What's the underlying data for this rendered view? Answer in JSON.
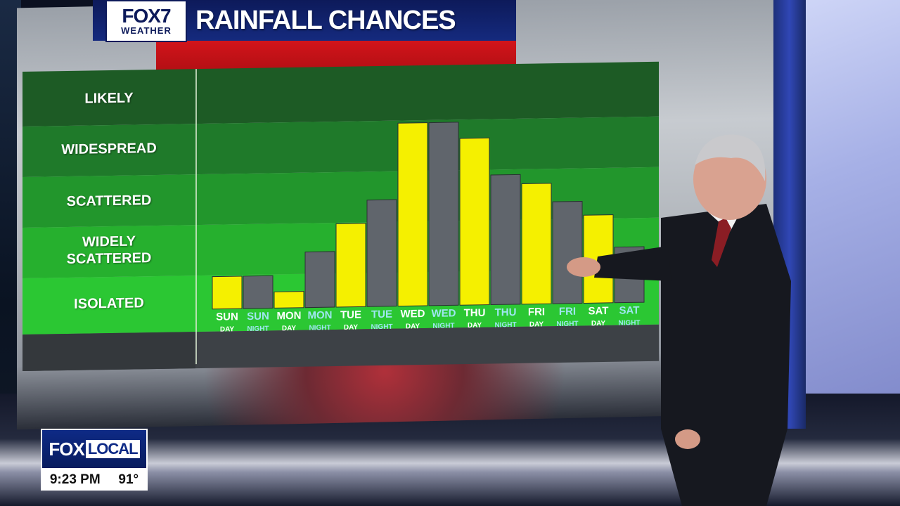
{
  "header": {
    "logo_main": "FOX7",
    "logo_sub": "WEATHER",
    "title": "RAINFALL CHANCES"
  },
  "chart_data": {
    "type": "bar",
    "title": "RAINFALL CHANCES",
    "y_scale": "categorical levels (values as 0-5 level units)",
    "levels": [
      "ISOLATED",
      "WIDELY SCATTERED",
      "SCATTERED",
      "WIDESPREAD",
      "LIKELY"
    ],
    "categories": [
      {
        "day": "SUN",
        "period": "DAY"
      },
      {
        "day": "SUN",
        "period": "NIGHT"
      },
      {
        "day": "MON",
        "period": "DAY"
      },
      {
        "day": "MON",
        "period": "NIGHT"
      },
      {
        "day": "TUE",
        "period": "DAY"
      },
      {
        "day": "TUE",
        "period": "NIGHT"
      },
      {
        "day": "WED",
        "period": "DAY"
      },
      {
        "day": "WED",
        "period": "NIGHT"
      },
      {
        "day": "THU",
        "period": "DAY"
      },
      {
        "day": "THU",
        "period": "NIGHT"
      },
      {
        "day": "FRI",
        "period": "DAY"
      },
      {
        "day": "FRI",
        "period": "NIGHT"
      },
      {
        "day": "SAT",
        "period": "DAY"
      },
      {
        "day": "SAT",
        "period": "NIGHT"
      }
    ],
    "values": [
      0.7,
      0.7,
      0.35,
      1.2,
      1.8,
      2.3,
      3.95,
      3.95,
      3.6,
      2.8,
      2.6,
      2.2,
      1.9,
      1.2
    ],
    "ylim": [
      0,
      4.4
    ],
    "colors": {
      "day": "#f5f000",
      "night": "#60656c"
    }
  },
  "bands": [
    {
      "label": "LIKELY",
      "color": "#1d5b25"
    },
    {
      "label": "WIDESPREAD",
      "color": "#1f7a2a"
    },
    {
      "label": "SCATTERED",
      "color": "#22962c"
    },
    {
      "label": "WIDELY\nSCATTERED",
      "color": "#26b02e"
    },
    {
      "label": "ISOLATED",
      "color": "#2bc733"
    }
  ],
  "lower_third": {
    "brand": "FOX",
    "brand_box": "LOCAL",
    "time": "9:23 PM",
    "temp": "91°"
  }
}
